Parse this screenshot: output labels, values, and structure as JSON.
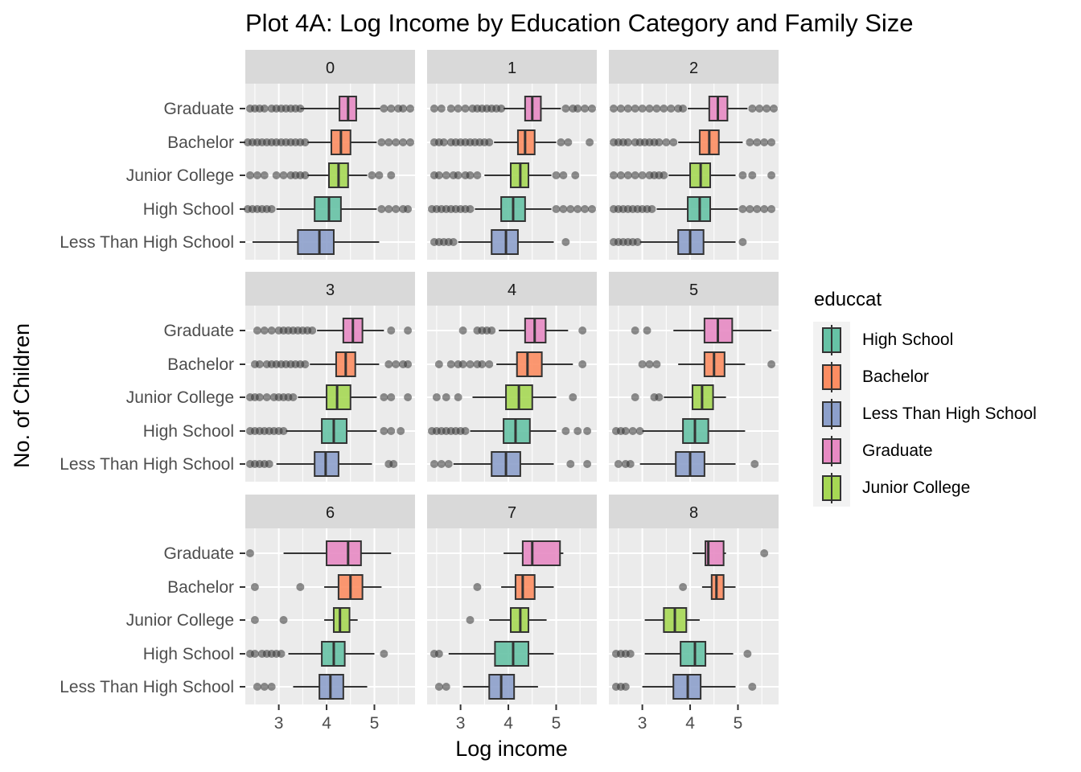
{
  "chart_data": {
    "type": "boxplot",
    "title": "Plot 4A: Log Income by Education Category and Family Size",
    "xlabel": "Log income",
    "ylabel": "No. of Children",
    "xlim": [
      2.3,
      5.85
    ],
    "x_ticks": [
      3,
      4,
      5
    ],
    "x_tick_labels": [
      "3",
      "4",
      "5"
    ],
    "categories": [
      "Graduate",
      "Bachelor",
      "Junior College",
      "High School",
      "Less Than High School"
    ],
    "facet_layout": "3x3 grid",
    "grid": true,
    "legend": {
      "title": "educcat",
      "placement": "right",
      "entries": [
        "High School",
        "Bachelor",
        "Less Than High School",
        "Graduate",
        "Junior College"
      ]
    },
    "colors": {
      "Graduate": "#E78AC3",
      "Bachelor": "#FC8D62",
      "Junior College": "#A6D854",
      "High School": "#66C2A5",
      "Less Than High School": "#8DA0CB"
    },
    "panels": [
      {
        "label": "0",
        "boxes": [
          {
            "category": "Graduate",
            "whisker_low": 3.45,
            "q1": 4.27,
            "median": 4.45,
            "q3": 4.62,
            "whisker_high": 5.12,
            "outliers": [
              2.4,
              2.5,
              2.6,
              2.7,
              2.85,
              2.95,
              3.05,
              3.15,
              3.25,
              3.35,
              3.45,
              5.2,
              5.35,
              5.5,
              5.6,
              5.75
            ]
          },
          {
            "category": "Bachelor",
            "whisker_low": 3.6,
            "q1": 4.1,
            "median": 4.3,
            "q3": 4.5,
            "whisker_high": 5.05,
            "outliers": [
              2.35,
              2.45,
              2.55,
              2.65,
              2.75,
              2.85,
              2.95,
              3.05,
              3.15,
              3.25,
              3.35,
              3.45,
              3.55,
              5.15,
              5.3,
              5.45,
              5.6,
              5.75
            ]
          },
          {
            "category": "Junior College",
            "whisker_low": 3.6,
            "q1": 4.05,
            "median": 4.25,
            "q3": 4.45,
            "whisker_high": 4.85,
            "outliers": [
              2.4,
              2.55,
              2.7,
              2.95,
              3.1,
              3.25,
              3.35,
              3.45,
              3.55,
              4.95,
              5.1,
              5.35
            ]
          },
          {
            "category": "High School",
            "whisker_low": 2.95,
            "q1": 3.75,
            "median": 4.05,
            "q3": 4.3,
            "whisker_high": 5.05,
            "outliers": [
              2.35,
              2.45,
              2.55,
              2.65,
              2.75,
              2.85,
              5.15,
              5.3,
              5.45,
              5.6,
              5.7
            ]
          },
          {
            "category": "Less Than High School",
            "whisker_low": 2.45,
            "q1": 3.4,
            "median": 3.85,
            "q3": 4.15,
            "whisker_high": 5.1,
            "outliers": []
          }
        ]
      },
      {
        "label": "1",
        "boxes": [
          {
            "category": "Graduate",
            "whisker_low": 3.9,
            "q1": 4.35,
            "median": 4.5,
            "q3": 4.68,
            "whisker_high": 5.1,
            "outliers": [
              2.45,
              2.6,
              2.8,
              2.95,
              3.1,
              3.25,
              3.35,
              3.45,
              3.55,
              3.65,
              3.75,
              3.85,
              5.2,
              5.35,
              5.45,
              5.6,
              5.75
            ]
          },
          {
            "category": "Bachelor",
            "whisker_low": 3.7,
            "q1": 4.2,
            "median": 4.35,
            "q3": 4.55,
            "whisker_high": 5.0,
            "outliers": [
              2.45,
              2.55,
              2.65,
              2.8,
              2.9,
              3.0,
              3.1,
              3.2,
              3.3,
              3.4,
              3.5,
              3.6,
              5.1,
              5.25,
              5.7
            ]
          },
          {
            "category": "Junior College",
            "whisker_low": 3.5,
            "q1": 4.05,
            "median": 4.25,
            "q3": 4.42,
            "whisker_high": 4.9,
            "outliers": [
              2.45,
              2.55,
              2.7,
              2.85,
              2.95,
              3.1,
              3.2,
              3.35,
              5.0,
              5.15,
              5.4
            ]
          },
          {
            "category": "High School",
            "whisker_low": 3.3,
            "q1": 3.85,
            "median": 4.1,
            "q3": 4.35,
            "whisker_high": 4.9,
            "outliers": [
              2.4,
              2.5,
              2.6,
              2.7,
              2.8,
              2.9,
              3.0,
              3.1,
              3.2,
              5.0,
              5.15,
              5.3,
              5.45,
              5.6,
              5.75
            ]
          },
          {
            "category": "Less Than High School",
            "whisker_low": 2.95,
            "q1": 3.65,
            "median": 3.95,
            "q3": 4.2,
            "whisker_high": 4.95,
            "outliers": [
              2.45,
              2.55,
              2.65,
              2.75,
              2.85,
              5.2
            ]
          }
        ]
      },
      {
        "label": "2",
        "boxes": [
          {
            "category": "Graduate",
            "whisker_low": 3.95,
            "q1": 4.4,
            "median": 4.58,
            "q3": 4.78,
            "whisker_high": 5.2,
            "outliers": [
              2.4,
              2.55,
              2.7,
              2.85,
              3.0,
              3.15,
              3.3,
              3.45,
              3.6,
              3.75,
              3.85,
              5.3,
              5.45,
              5.6,
              5.75
            ]
          },
          {
            "category": "Bachelor",
            "whisker_low": 3.75,
            "q1": 4.2,
            "median": 4.4,
            "q3": 4.6,
            "whisker_high": 5.1,
            "outliers": [
              2.4,
              2.5,
              2.6,
              2.7,
              2.85,
              2.95,
              3.05,
              3.15,
              3.25,
              3.35,
              3.5,
              3.65,
              5.25,
              5.4,
              5.55,
              5.7
            ]
          },
          {
            "category": "Junior College",
            "whisker_low": 3.55,
            "q1": 4.0,
            "median": 4.22,
            "q3": 4.42,
            "whisker_high": 4.95,
            "outliers": [
              2.4,
              2.55,
              2.7,
              2.85,
              3.0,
              3.15,
              3.25,
              3.35,
              3.45,
              5.1,
              5.3,
              5.7
            ]
          },
          {
            "category": "High School",
            "whisker_low": 3.3,
            "q1": 3.95,
            "median": 4.2,
            "q3": 4.42,
            "whisker_high": 5.0,
            "outliers": [
              2.4,
              2.5,
              2.6,
              2.7,
              2.8,
              2.9,
              3.0,
              3.1,
              3.2,
              5.1,
              5.25,
              5.4,
              5.55,
              5.7
            ]
          },
          {
            "category": "Less Than High School",
            "whisker_low": 2.95,
            "q1": 3.75,
            "median": 4.0,
            "q3": 4.28,
            "whisker_high": 4.95,
            "outliers": [
              2.4,
              2.5,
              2.6,
              2.7,
              2.8,
              2.9,
              5.1
            ]
          }
        ]
      },
      {
        "label": "3",
        "boxes": [
          {
            "category": "Graduate",
            "whisker_low": 3.8,
            "q1": 4.35,
            "median": 4.55,
            "q3": 4.75,
            "whisker_high": 5.2,
            "outliers": [
              2.55,
              2.7,
              2.85,
              3.0,
              3.1,
              3.2,
              3.3,
              3.4,
              3.5,
              3.6,
              3.7,
              5.35,
              5.7
            ]
          },
          {
            "category": "Bachelor",
            "whisker_low": 3.65,
            "q1": 4.2,
            "median": 4.4,
            "q3": 4.6,
            "whisker_high": 5.1,
            "outliers": [
              2.5,
              2.6,
              2.75,
              2.85,
              2.95,
              3.05,
              3.15,
              3.25,
              3.35,
              3.45,
              3.55,
              5.3,
              5.45,
              5.6,
              5.7
            ]
          },
          {
            "category": "Junior College",
            "whisker_low": 3.4,
            "q1": 4.0,
            "median": 4.22,
            "q3": 4.5,
            "whisker_high": 5.05,
            "outliers": [
              2.4,
              2.5,
              2.6,
              2.75,
              2.9,
              3.0,
              3.1,
              3.2,
              3.3,
              5.2,
              5.35,
              5.7
            ]
          },
          {
            "category": "High School",
            "whisker_low": 3.15,
            "q1": 3.9,
            "median": 4.15,
            "q3": 4.42,
            "whisker_high": 5.05,
            "outliers": [
              2.4,
              2.5,
              2.6,
              2.7,
              2.8,
              2.9,
              3.0,
              3.1,
              5.2,
              5.35,
              5.55
            ]
          },
          {
            "category": "Less Than High School",
            "whisker_low": 2.95,
            "q1": 3.75,
            "median": 3.98,
            "q3": 4.25,
            "whisker_high": 4.95,
            "outliers": [
              2.4,
              2.5,
              2.6,
              2.7,
              2.8,
              5.3,
              5.4
            ]
          }
        ]
      },
      {
        "label": "4",
        "boxes": [
          {
            "category": "Graduate",
            "whisker_low": 3.8,
            "q1": 4.35,
            "median": 4.55,
            "q3": 4.78,
            "whisker_high": 5.25,
            "outliers": [
              3.05,
              3.35,
              3.45,
              3.55,
              3.65,
              5.55
            ]
          },
          {
            "category": "Bachelor",
            "whisker_low": 3.75,
            "q1": 4.18,
            "median": 4.4,
            "q3": 4.7,
            "whisker_high": 5.35,
            "outliers": [
              2.55,
              2.8,
              2.95,
              3.05,
              3.2,
              3.35,
              3.45,
              3.6,
              5.55
            ]
          },
          {
            "category": "Junior College",
            "whisker_low": 3.25,
            "q1": 3.95,
            "median": 4.22,
            "q3": 4.5,
            "whisker_high": 5.0,
            "outliers": [
              2.5,
              2.7,
              2.95,
              5.35
            ]
          },
          {
            "category": "High School",
            "whisker_low": 3.2,
            "q1": 3.9,
            "median": 4.15,
            "q3": 4.45,
            "whisker_high": 5.0,
            "outliers": [
              2.4,
              2.5,
              2.6,
              2.7,
              2.8,
              2.9,
              3.0,
              3.1,
              5.2,
              5.45,
              5.65
            ]
          },
          {
            "category": "Less Than High School",
            "whisker_low": 2.85,
            "q1": 3.65,
            "median": 3.95,
            "q3": 4.25,
            "whisker_high": 4.95,
            "outliers": [
              2.45,
              2.6,
              2.75,
              5.3,
              5.65
            ]
          }
        ]
      },
      {
        "label": "5",
        "boxes": [
          {
            "category": "Graduate",
            "whisker_low": 3.65,
            "q1": 4.3,
            "median": 4.58,
            "q3": 4.88,
            "whisker_high": 5.7,
            "outliers": [
              2.85,
              3.1
            ]
          },
          {
            "category": "Bachelor",
            "whisker_low": 3.75,
            "q1": 4.3,
            "median": 4.5,
            "q3": 4.72,
            "whisker_high": 5.15,
            "outliers": [
              3.0,
              3.15,
              3.3,
              5.7
            ]
          },
          {
            "category": "Junior College",
            "whisker_low": 3.45,
            "q1": 4.05,
            "median": 4.25,
            "q3": 4.48,
            "whisker_high": 4.75,
            "outliers": [
              2.85,
              3.25,
              3.35
            ]
          },
          {
            "category": "High School",
            "whisker_low": 3.0,
            "q1": 3.85,
            "median": 4.1,
            "q3": 4.38,
            "whisker_high": 5.15,
            "outliers": [
              2.45,
              2.55,
              2.65,
              2.8,
              2.95
            ]
          },
          {
            "category": "Less Than High School",
            "whisker_low": 2.95,
            "q1": 3.7,
            "median": 4.0,
            "q3": 4.3,
            "whisker_high": 4.95,
            "outliers": [
              2.5,
              2.65,
              2.75,
              5.35
            ]
          }
        ]
      },
      {
        "label": "6",
        "boxes": [
          {
            "category": "Graduate",
            "whisker_low": 3.1,
            "q1": 4.0,
            "median": 4.45,
            "q3": 4.72,
            "whisker_high": 5.35,
            "outliers": [
              2.4
            ]
          },
          {
            "category": "Bachelor",
            "whisker_low": 3.95,
            "q1": 4.25,
            "median": 4.5,
            "q3": 4.75,
            "whisker_high": 5.15,
            "outliers": [
              2.5,
              3.45
            ]
          },
          {
            "category": "Junior College",
            "whisker_low": 3.95,
            "q1": 4.15,
            "median": 4.28,
            "q3": 4.48,
            "whisker_high": 4.65,
            "outliers": [
              2.5,
              3.1
            ]
          },
          {
            "category": "High School",
            "whisker_low": 3.2,
            "q1": 3.9,
            "median": 4.15,
            "q3": 4.38,
            "whisker_high": 5.0,
            "outliers": [
              2.4,
              2.5,
              2.65,
              2.75,
              2.85,
              2.95,
              3.05,
              5.2
            ]
          },
          {
            "category": "Less Than High School",
            "whisker_low": 3.3,
            "q1": 3.85,
            "median": 4.08,
            "q3": 4.35,
            "whisker_high": 4.85,
            "outliers": [
              2.55,
              2.7,
              2.85
            ]
          }
        ]
      },
      {
        "label": "7",
        "boxes": [
          {
            "category": "Graduate",
            "whisker_low": 3.9,
            "q1": 4.3,
            "median": 4.5,
            "q3": 5.08,
            "whisker_high": 5.15,
            "outliers": []
          },
          {
            "category": "Bachelor",
            "whisker_low": 3.85,
            "q1": 4.15,
            "median": 4.3,
            "q3": 4.55,
            "whisker_high": 4.95,
            "outliers": [
              3.35
            ]
          },
          {
            "category": "Junior College",
            "whisker_low": 3.6,
            "q1": 4.05,
            "median": 4.25,
            "q3": 4.42,
            "whisker_high": 4.8,
            "outliers": [
              3.2
            ]
          },
          {
            "category": "High School",
            "whisker_low": 2.75,
            "q1": 3.72,
            "median": 4.1,
            "q3": 4.42,
            "whisker_high": 4.95,
            "outliers": [
              2.45,
              2.55
            ]
          },
          {
            "category": "Less Than High School",
            "whisker_low": 3.05,
            "q1": 3.6,
            "median": 3.85,
            "q3": 4.12,
            "whisker_high": 4.62,
            "outliers": [
              2.55,
              2.7
            ]
          }
        ]
      },
      {
        "label": "8",
        "boxes": [
          {
            "category": "Graduate",
            "whisker_low": 4.05,
            "q1": 4.32,
            "median": 4.38,
            "q3": 4.7,
            "whisker_high": 4.75,
            "outliers": [
              5.55
            ]
          },
          {
            "category": "Bachelor",
            "whisker_low": 4.25,
            "q1": 4.45,
            "median": 4.55,
            "q3": 4.7,
            "whisker_high": 4.95,
            "outliers": [
              3.85
            ]
          },
          {
            "category": "Junior College",
            "whisker_low": 3.05,
            "q1": 3.45,
            "median": 3.68,
            "q3": 3.92,
            "whisker_high": 4.2,
            "outliers": []
          },
          {
            "category": "High School",
            "whisker_low": 3.05,
            "q1": 3.8,
            "median": 4.1,
            "q3": 4.32,
            "whisker_high": 4.9,
            "outliers": [
              2.45,
              2.55,
              2.65,
              2.75,
              5.2
            ]
          },
          {
            "category": "Less Than High School",
            "whisker_low": 3.0,
            "q1": 3.65,
            "median": 3.95,
            "q3": 4.22,
            "whisker_high": 4.95,
            "outliers": [
              2.45,
              2.55,
              2.65,
              5.3
            ]
          }
        ]
      }
    ]
  }
}
